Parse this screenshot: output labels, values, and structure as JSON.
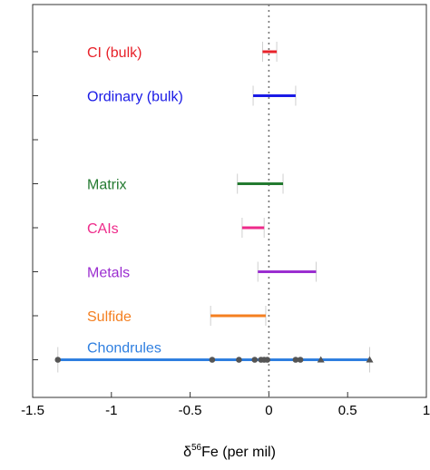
{
  "chart_data": {
    "type": "range",
    "xlabel_prefix": "δ",
    "xlabel_sup": "56",
    "xlabel_rest": "Fe (per mil)",
    "xlim": [
      -1.5,
      1
    ],
    "xticks": [
      -1.5,
      -1,
      -0.5,
      0,
      0.5,
      1
    ],
    "xtick_labels": [
      "-1.5",
      "-1",
      "-0.5",
      "0",
      "0.5",
      "1"
    ],
    "reference_line_x": 0,
    "grid": false,
    "legend": "none",
    "series": [
      {
        "label": "CI (bulk)",
        "color": "#e8222a",
        "min": -0.04,
        "max": 0.05,
        "row": 0
      },
      {
        "label": "Ordinary (bulk)",
        "color": "#1a1ae6",
        "min": -0.1,
        "max": 0.17,
        "row": 1
      },
      {
        "label": "Matrix",
        "color": "#237a30",
        "min": -0.2,
        "max": 0.09,
        "row": 3
      },
      {
        "label": "CAIs",
        "color": "#ee2a8a",
        "min": -0.17,
        "max": -0.03,
        "row": 4
      },
      {
        "label": "Metals",
        "color": "#9b2ed0",
        "min": -0.07,
        "max": 0.3,
        "row": 5
      },
      {
        "label": "Sulfide",
        "color": "#f47f20",
        "min": -0.37,
        "max": -0.02,
        "row": 6
      },
      {
        "label": "Chondrules",
        "color": "#2f7fe0",
        "min": -1.34,
        "max": 0.64,
        "row": 7
      }
    ],
    "chondrule_points": [
      {
        "x": -1.34,
        "marker": "circle"
      },
      {
        "x": -0.36,
        "marker": "circle"
      },
      {
        "x": -0.19,
        "marker": "circle"
      },
      {
        "x": -0.09,
        "marker": "circle"
      },
      {
        "x": -0.05,
        "marker": "circle"
      },
      {
        "x": -0.03,
        "marker": "circle"
      },
      {
        "x": -0.01,
        "marker": "circle"
      },
      {
        "x": 0.17,
        "marker": "circle"
      },
      {
        "x": 0.2,
        "marker": "circle"
      },
      {
        "x": 0.33,
        "marker": "triangle"
      },
      {
        "x": 0.64,
        "marker": "triangle"
      }
    ]
  }
}
